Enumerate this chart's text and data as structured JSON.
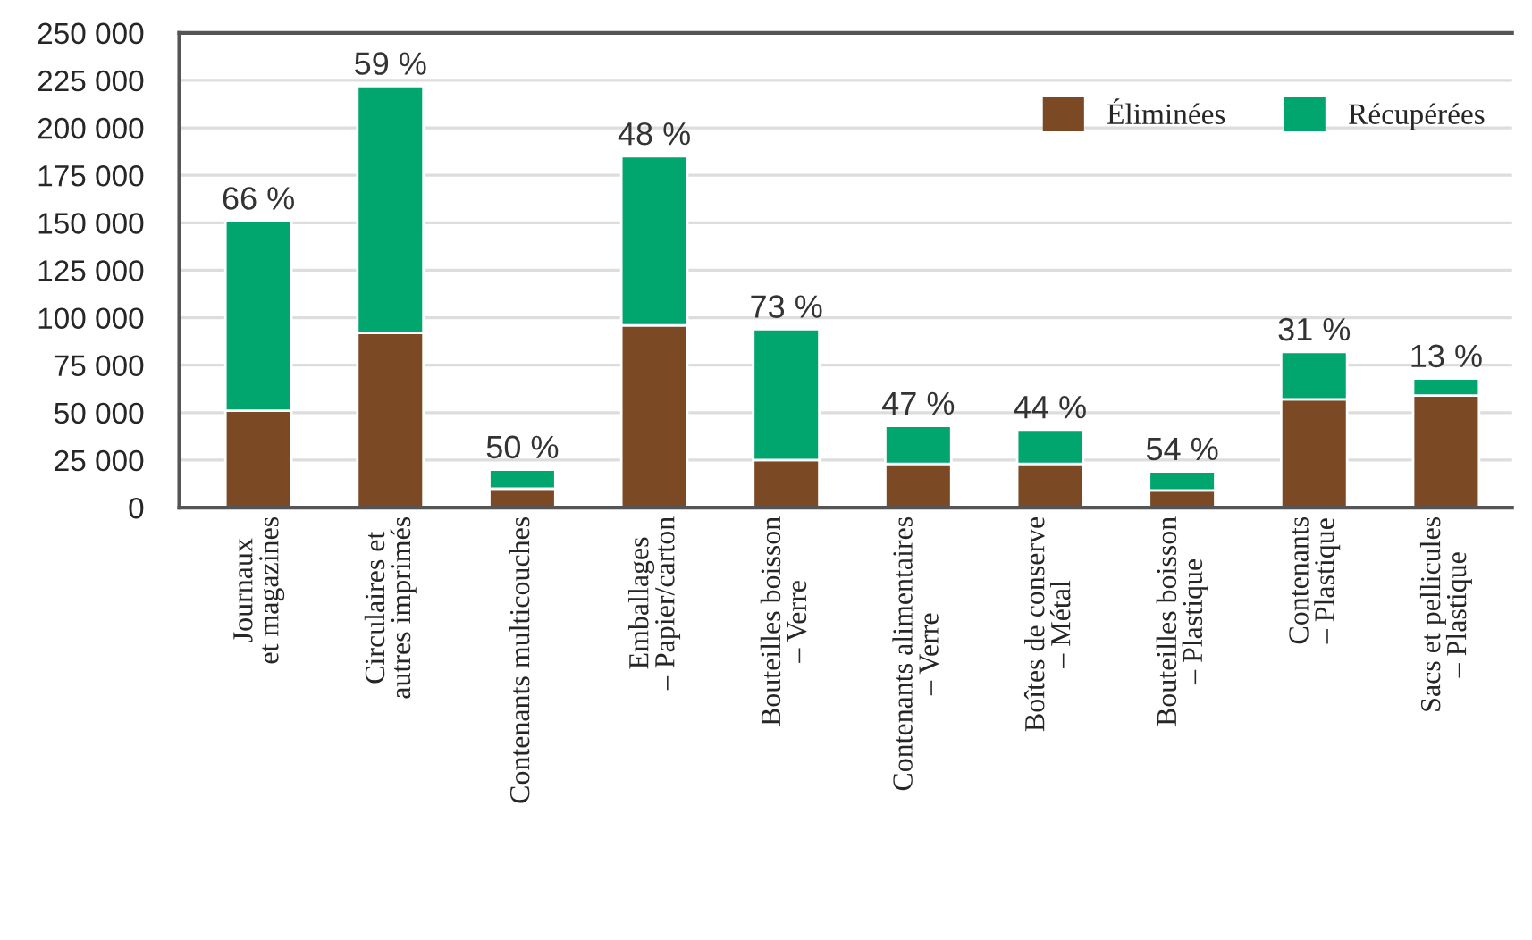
{
  "chart_data": {
    "type": "bar",
    "stacked": true,
    "categories": [
      "Journaux\net magazines",
      "Circulaires et\nautres imprimés",
      "Contenants multicouches",
      "Emballages\n– Papier/carton",
      "Bouteilles boisson\n– Verre",
      "Contenants alimentaires\n– Verre",
      "Boîtes de conserve\n– Métal",
      "Bouteilles boisson\n– Plastique",
      "Contenants\n– Plastique",
      "Sacs et pellicules\n– Plastique"
    ],
    "series": [
      {
        "name": "Éliminées",
        "color": "#7b4a25",
        "values": [
          51000,
          92000,
          10000,
          96000,
          25000,
          23000,
          23000,
          9000,
          57000,
          59000
        ]
      },
      {
        "name": "Récupérées",
        "color": "#00a66e",
        "values": [
          100000,
          130000,
          10000,
          89000,
          69000,
          20000,
          18000,
          10000,
          25000,
          9000
        ]
      }
    ],
    "annotations": [
      "66 %",
      "59 %",
      "50 %",
      "48 %",
      "73 %",
      "47 %",
      "44 %",
      "54 %",
      "31 %",
      "13 %"
    ],
    "ylim": [
      0,
      250000
    ],
    "yticks": [
      {
        "value": 0,
        "label": "0"
      },
      {
        "value": 25000,
        "label": "25 000"
      },
      {
        "value": 50000,
        "label": "50 000"
      },
      {
        "value": 75000,
        "label": "75 000"
      },
      {
        "value": 100000,
        "label": "100 000"
      },
      {
        "value": 125000,
        "label": "125 000"
      },
      {
        "value": 150000,
        "label": "150 000"
      },
      {
        "value": 175000,
        "label": "175 000"
      },
      {
        "value": 200000,
        "label": "200 000"
      },
      {
        "value": 225000,
        "label": "225 000"
      },
      {
        "value": 250000,
        "label": "250 000"
      }
    ],
    "grid": "y",
    "legend": "top right"
  }
}
